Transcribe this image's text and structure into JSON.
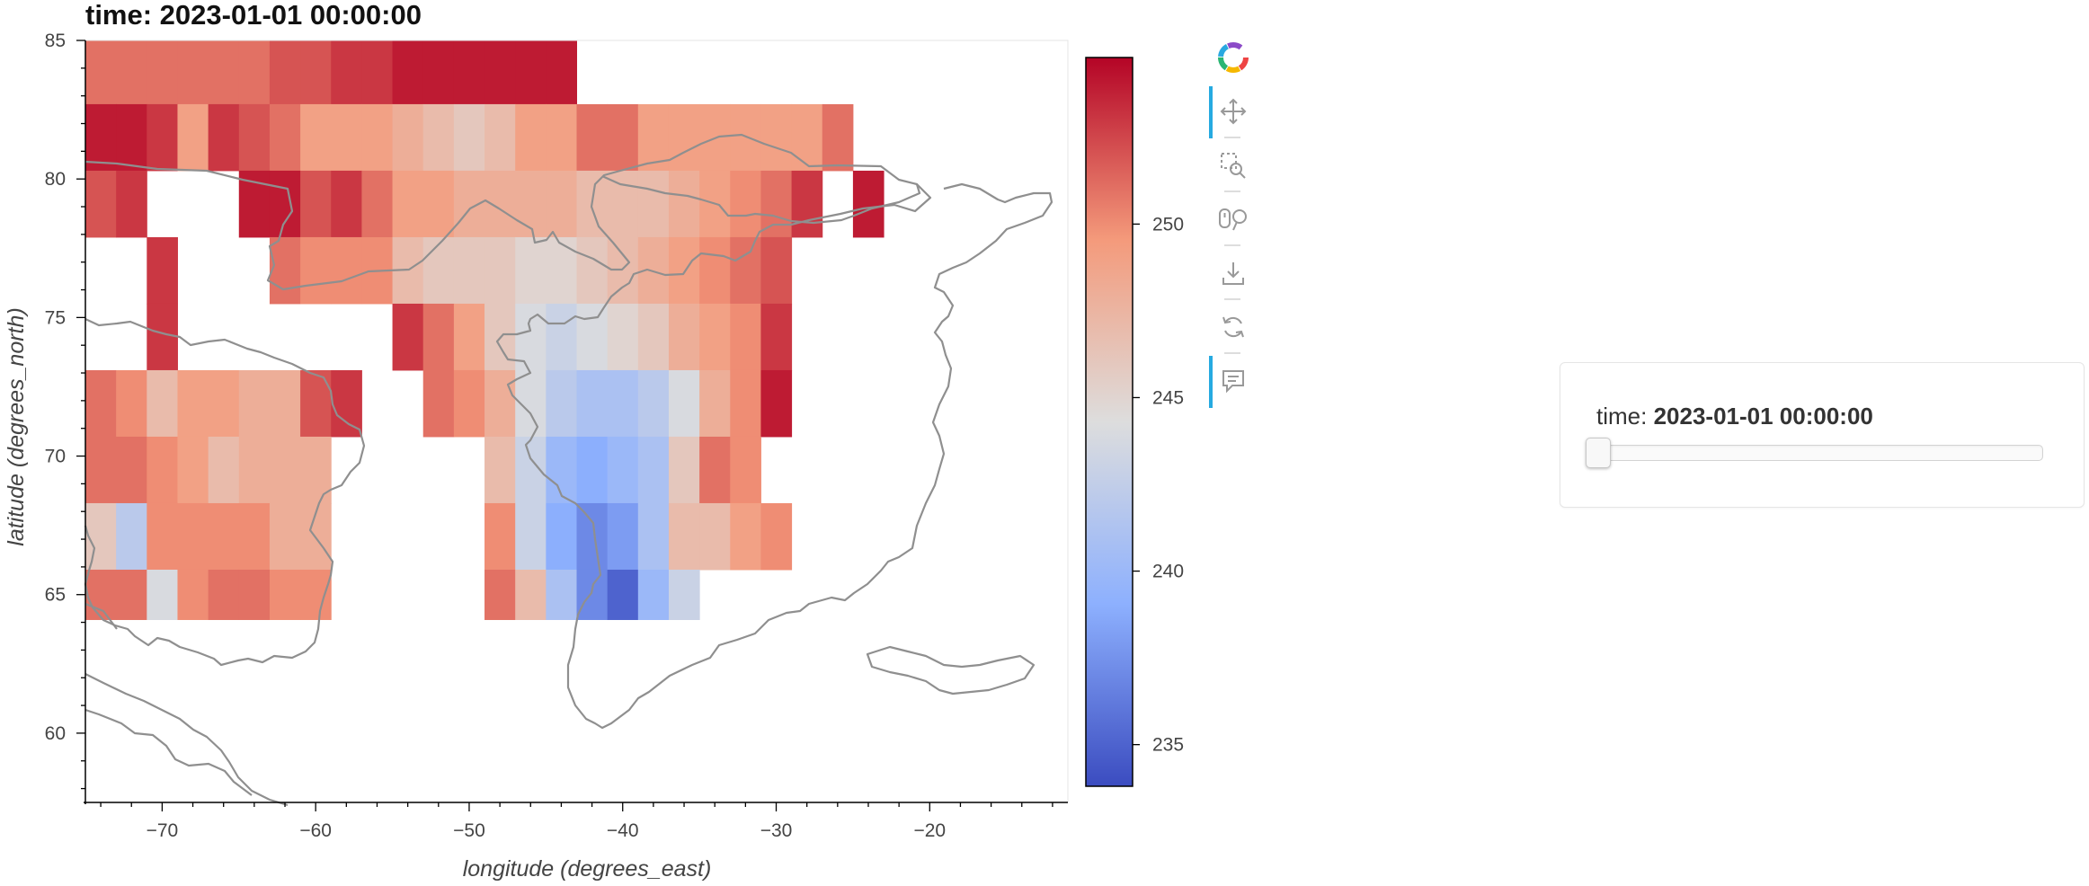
{
  "title": "time: 2023-01-01 00:00:00",
  "chart_data": {
    "type": "heatmap",
    "title": "time: 2023-01-01 00:00:00",
    "xlabel": "longitude (degrees_east)",
    "ylabel": "latitude (degrees_north)",
    "xlim": [
      -75,
      -11
    ],
    "ylim": [
      57.5,
      85
    ],
    "x_ticks": [
      -70,
      -60,
      -50,
      -40,
      -30,
      -20
    ],
    "y_ticks": [
      60,
      65,
      70,
      75,
      80,
      85
    ],
    "colormap": "coolwarm",
    "colorbar": {
      "range": [
        233.8,
        254.8
      ],
      "ticks": [
        235,
        240,
        245,
        250
      ]
    },
    "cell_width_deg": 2,
    "lon_start": -75,
    "lat_edges": [
      82.7,
      80.3,
      77.9,
      75.5,
      73.1,
      70.7,
      68.3,
      65.9,
      64.1
    ],
    "top_band": {
      "lat_range": [
        82.7,
        85
      ],
      "lon_range": [
        -75,
        -43
      ],
      "values": [
        251,
        251,
        251,
        251,
        251,
        251,
        252,
        252,
        253,
        253,
        254,
        254,
        254,
        254,
        254,
        254
      ]
    },
    "rows": [
      [
        254,
        254,
        253,
        249,
        253,
        252,
        251,
        249,
        249,
        249,
        248,
        247,
        246,
        247,
        249,
        249,
        251,
        251,
        249,
        249,
        249,
        249,
        249,
        249,
        251,
        null,
        null,
        null
      ],
      [
        252,
        253,
        null,
        null,
        null,
        254,
        254,
        252,
        253,
        251,
        249,
        249,
        248,
        248,
        248,
        248,
        247,
        247,
        247,
        248,
        249,
        250,
        251,
        253,
        null,
        254,
        null,
        null
      ],
      [
        null,
        null,
        253,
        null,
        null,
        null,
        251,
        250,
        250,
        250,
        247,
        246,
        246,
        246,
        245,
        245,
        246,
        247,
        248,
        249,
        250,
        251,
        252,
        null,
        null,
        null,
        null,
        null
      ],
      [
        null,
        null,
        253,
        null,
        null,
        null,
        null,
        null,
        null,
        null,
        253,
        251,
        249,
        246,
        244,
        243,
        244,
        245,
        246,
        248,
        249,
        250,
        253,
        null,
        null,
        null,
        null,
        null
      ],
      [
        251,
        250,
        247,
        249,
        249,
        248,
        248,
        252,
        253,
        null,
        null,
        251,
        250,
        248,
        244,
        242,
        241,
        241,
        242,
        244,
        248,
        250,
        254,
        null,
        null,
        null,
        null,
        null
      ],
      [
        251,
        251,
        250,
        249,
        247,
        248,
        248,
        248,
        null,
        null,
        null,
        null,
        null,
        247,
        243,
        240,
        239,
        240,
        241,
        246,
        251,
        250,
        null,
        null,
        null,
        null,
        null,
        null
      ],
      [
        246,
        242,
        250,
        250,
        250,
        250,
        248,
        248,
        null,
        null,
        null,
        null,
        null,
        250,
        243,
        239,
        237,
        238,
        241,
        247,
        247,
        249,
        250,
        null,
        null,
        null,
        null,
        null
      ],
      [
        251,
        251,
        244,
        250,
        251,
        251,
        250,
        250,
        null,
        null,
        null,
        null,
        null,
        251,
        247,
        241,
        237,
        235,
        240,
        243,
        null,
        null,
        null,
        null,
        null,
        null,
        null,
        null
      ],
      [
        null,
        null,
        250,
        253,
        251,
        252,
        null,
        null,
        null,
        null,
        null,
        null,
        null,
        254,
        247,
        250,
        null,
        null,
        null,
        null,
        null,
        null,
        null,
        null,
        null,
        null,
        null,
        null
      ]
    ]
  },
  "toolbar": {
    "logo": "bokeh-logo-icon",
    "tools": [
      {
        "name": "pan-tool",
        "icon": "pan-icon",
        "active": true
      },
      {
        "name": "box-zoom-tool",
        "icon": "box-zoom-icon",
        "active": false
      },
      {
        "name": "wheel-zoom-tool",
        "icon": "wheel-zoom-icon",
        "active": false
      },
      {
        "name": "save-tool",
        "icon": "save-icon",
        "active": false
      },
      {
        "name": "reset-tool",
        "icon": "reset-icon",
        "active": false
      },
      {
        "name": "hover-tool",
        "icon": "hover-icon",
        "active": true
      }
    ]
  },
  "widget": {
    "label_prefix": "time: ",
    "value": "2023-01-01 00:00:00",
    "slider_position": 0
  }
}
